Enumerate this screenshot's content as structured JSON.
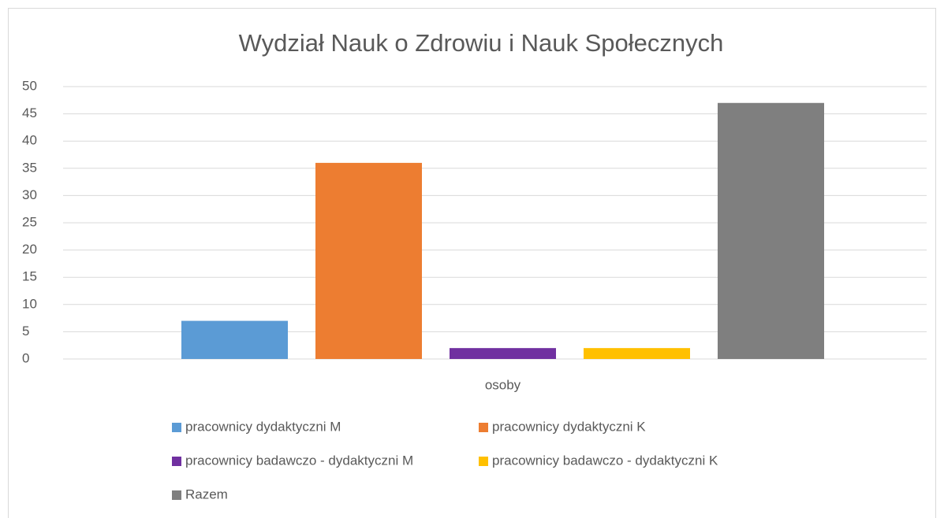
{
  "chart_data": {
    "type": "bar",
    "title": "Wydział Nauk o Zdrowiu i Nauk Społecznych",
    "categories": [
      "osoby"
    ],
    "series": [
      {
        "name": "pracownicy dydaktyczni M",
        "color": "#5b9bd5",
        "values": [
          7
        ]
      },
      {
        "name": "pracownicy dydaktyczni K",
        "color": "#ed7d31",
        "values": [
          36
        ]
      },
      {
        "name": "pracownicy badawczo - dydaktyczni M",
        "color": "#7030a0",
        "values": [
          2
        ]
      },
      {
        "name": "pracownicy badawczo - dydaktyczni K",
        "color": "#ffc000",
        "values": [
          2
        ]
      },
      {
        "name": "Razem",
        "color": "#7f7f7f",
        "values": [
          47
        ]
      }
    ],
    "ylim": [
      0,
      50
    ],
    "yticks": [
      0,
      5,
      10,
      15,
      20,
      25,
      30,
      35,
      40,
      45,
      50
    ],
    "grid": true
  }
}
